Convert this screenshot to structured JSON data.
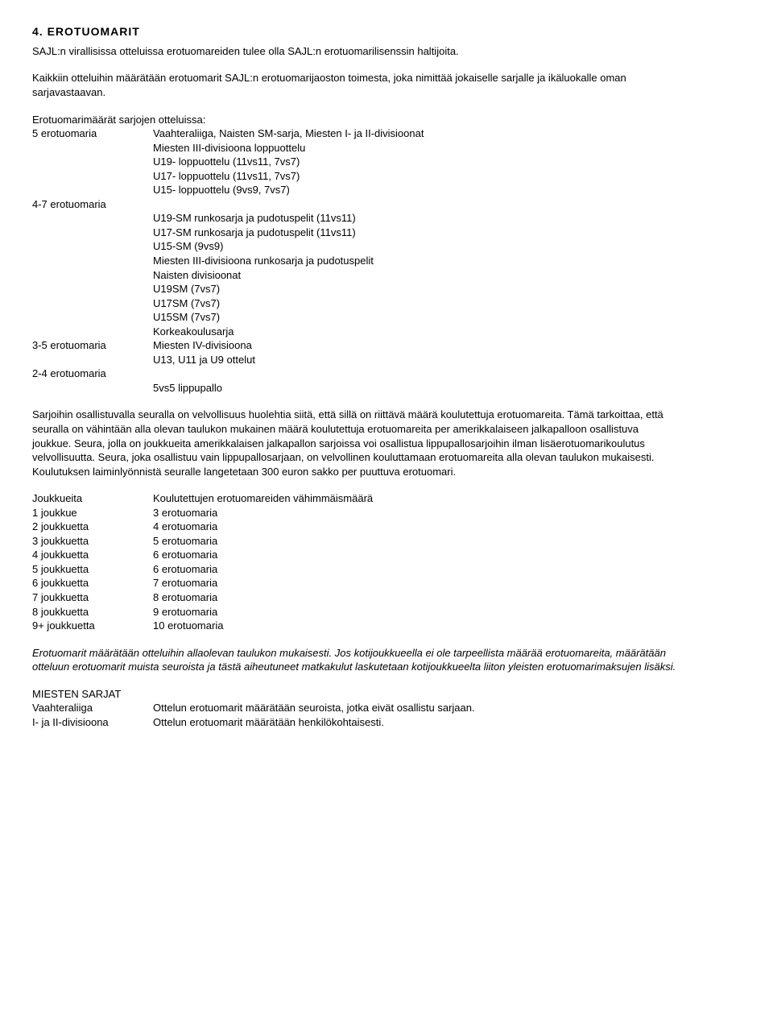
{
  "heading": "4. EROTUOMARIT",
  "p1": "SAJL:n virallisissa otteluissa erotuomareiden tulee olla SAJL:n erotuomarilisenssin haltijoita.",
  "p2": "Kaikkiin otteluihin määrätään erotuomarit SAJL:n erotuomarijaoston toimesta, joka nimittää jokaiselle sarjalle ja ikäluokalle oman sarjavastaavan.",
  "ref_list_title": "Erotuomarimäärät sarjojen otteluissa:",
  "ref5_key": "5 erotuomaria",
  "ref5_lines": [
    "Vaahteraliiga, Naisten SM-sarja, Miesten I- ja II-divisioonat",
    "Miesten III-divisioona loppuottelu",
    "U19- loppuottelu (11vs11, 7vs7)",
    "U17- loppuottelu (11vs11, 7vs7)",
    "U15- loppuottelu (9vs9, 7vs7)"
  ],
  "ref47_key": "4-7 erotuomaria",
  "ref47_lines": [
    "U19-SM runkosarja ja pudotuspelit (11vs11)",
    "U17-SM runkosarja ja pudotuspelit (11vs11)",
    "U15-SM (9vs9)",
    "Miesten III-divisioona runkosarja ja pudotuspelit",
    "Naisten divisioonat",
    "U19SM (7vs7)",
    "U17SM (7vs7)",
    "U15SM (7vs7)",
    "Korkeakoulusarja"
  ],
  "ref35_key": "3-5 erotuomaria",
  "ref35_lines": [
    "Miesten IV-divisioona",
    "U13, U11 ja U9 ottelut"
  ],
  "ref24_key": "2-4 erotuomaria",
  "ref24_lines": [
    "5vs5 lippupallo"
  ],
  "p3": "Sarjoihin osallistuvalla seuralla on velvollisuus huolehtia siitä, että sillä on riittävä määrä koulutettuja erotuomareita. Tämä tarkoittaa, että seuralla on vähintään alla olevan taulukon mukainen määrä koulutettuja erotuomareita per amerikkalaiseen jalkapalloon osallistuva joukkue. Seura, jolla on joukkueita amerikkalaisen jalkapallon sarjoissa voi osallistua lippupallosarjoihin ilman lisäerotuomarikoulutus velvollisuutta. Seura, joka osallistuu vain lippupallosarjaan, on velvollinen kouluttamaan erotuomareita alla olevan taulukon mukaisesti. Koulutuksen laiminlyönnistä seuralle langetetaan 300 euron sakko per puuttuva erotuomari.",
  "teams_header_key": "Joukkueita",
  "teams_header_val": "Koulutettujen erotuomareiden vähimmäismäärä",
  "teams_rows": [
    {
      "k": "1 joukkue",
      "v": "3 erotuomaria"
    },
    {
      "k": "2 joukkuetta",
      "v": "4 erotuomaria"
    },
    {
      "k": "3 joukkuetta",
      "v": "5 erotuomaria"
    },
    {
      "k": "4 joukkuetta",
      "v": "6 erotuomaria"
    },
    {
      "k": "5 joukkuetta",
      "v": "6 erotuomaria"
    },
    {
      "k": "6 joukkuetta",
      "v": "7 erotuomaria"
    },
    {
      "k": "7 joukkuetta",
      "v": "8 erotuomaria"
    },
    {
      "k": "8 joukkuetta",
      "v": "9 erotuomaria"
    },
    {
      "k": "9+ joukkuetta",
      "v": "10 erotuomaria"
    }
  ],
  "p4_italic": "Erotuomarit määrätään otteluihin allaolevan taulukon mukaisesti. Jos kotijoukkueella ei ole tarpeellista määrää erotuomareita, määrätään otteluun erotuomarit muista seuroista ja tästä aiheutuneet matkakulut laskutetaan kotijoukkueelta liiton yleisten erotuomarimaksujen lisäksi.",
  "mens_header": "MIESTEN SARJAT",
  "mens_rows": [
    {
      "k": "Vaahteraliiga",
      "v": "Ottelun erotuomarit määrätään seuroista, jotka eivät osallistu sarjaan."
    },
    {
      "k": "I- ja II-divisioona",
      "v": "Ottelun erotuomarit määrätään henkilökohtaisesti."
    }
  ]
}
